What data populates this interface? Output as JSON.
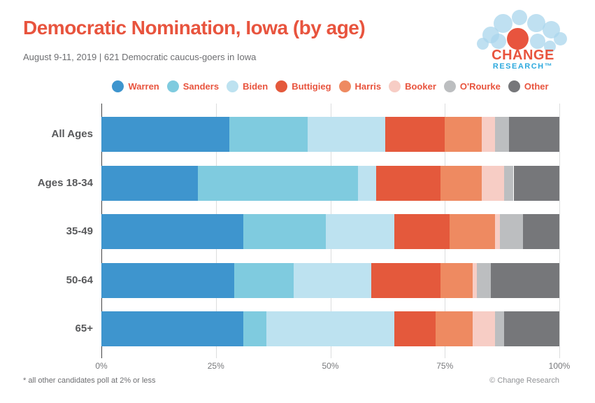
{
  "header": {
    "title": "Democratic Nomination, Iowa (by age)",
    "subtitle": "August 9-11, 2019  | 621 Democratic caucus-goers in Iowa"
  },
  "logo": {
    "line1": "CHANGE",
    "line2": "RESEARCH™"
  },
  "footer": {
    "footnote": "* all other candidates poll at 2% or less",
    "copyright": "© Change Research"
  },
  "colors": {
    "accent": "#E8543E",
    "logo_blue": "#2EA9DE",
    "gridline": "#DCDDDE",
    "axis": "#434445",
    "label_dark": "#58595B",
    "tick_gray": "#77787B"
  },
  "chart_data": {
    "type": "bar",
    "stacked": true,
    "orientation": "horizontal",
    "title": "Democratic Nomination, Iowa (by age)",
    "categories": [
      "All Ages",
      "Ages 18-34",
      "35-49",
      "50-64",
      "65+"
    ],
    "series": [
      {
        "name": "Warren",
        "color": "#3E95CE",
        "values": [
          28,
          21,
          31,
          29,
          31
        ]
      },
      {
        "name": "Sanders",
        "color": "#7FCBDF",
        "values": [
          17,
          35,
          18,
          13,
          5
        ]
      },
      {
        "name": "Biden",
        "color": "#BDE2F0",
        "values": [
          17,
          4,
          15,
          17,
          28
        ]
      },
      {
        "name": "Buttigieg",
        "color": "#E4593C",
        "values": [
          13,
          14,
          12,
          15,
          9
        ]
      },
      {
        "name": "Harris",
        "color": "#EE8A61",
        "values": [
          8,
          9,
          10,
          7,
          8
        ]
      },
      {
        "name": "Booker",
        "color": "#F7CDC5",
        "values": [
          3,
          5,
          1,
          1,
          5
        ]
      },
      {
        "name": "O'Rourke",
        "color": "#BCBEC0",
        "values": [
          3,
          2,
          5,
          3,
          2
        ]
      },
      {
        "name": "Other",
        "color": "#76777A",
        "values": [
          11,
          10,
          8,
          15,
          12
        ]
      }
    ],
    "x_ticks": [
      "0%",
      "25%",
      "50%",
      "75%",
      "100%"
    ],
    "xlim": [
      0,
      100
    ],
    "xlabel": "",
    "ylabel": "",
    "grid": true,
    "legend_position": "top"
  }
}
